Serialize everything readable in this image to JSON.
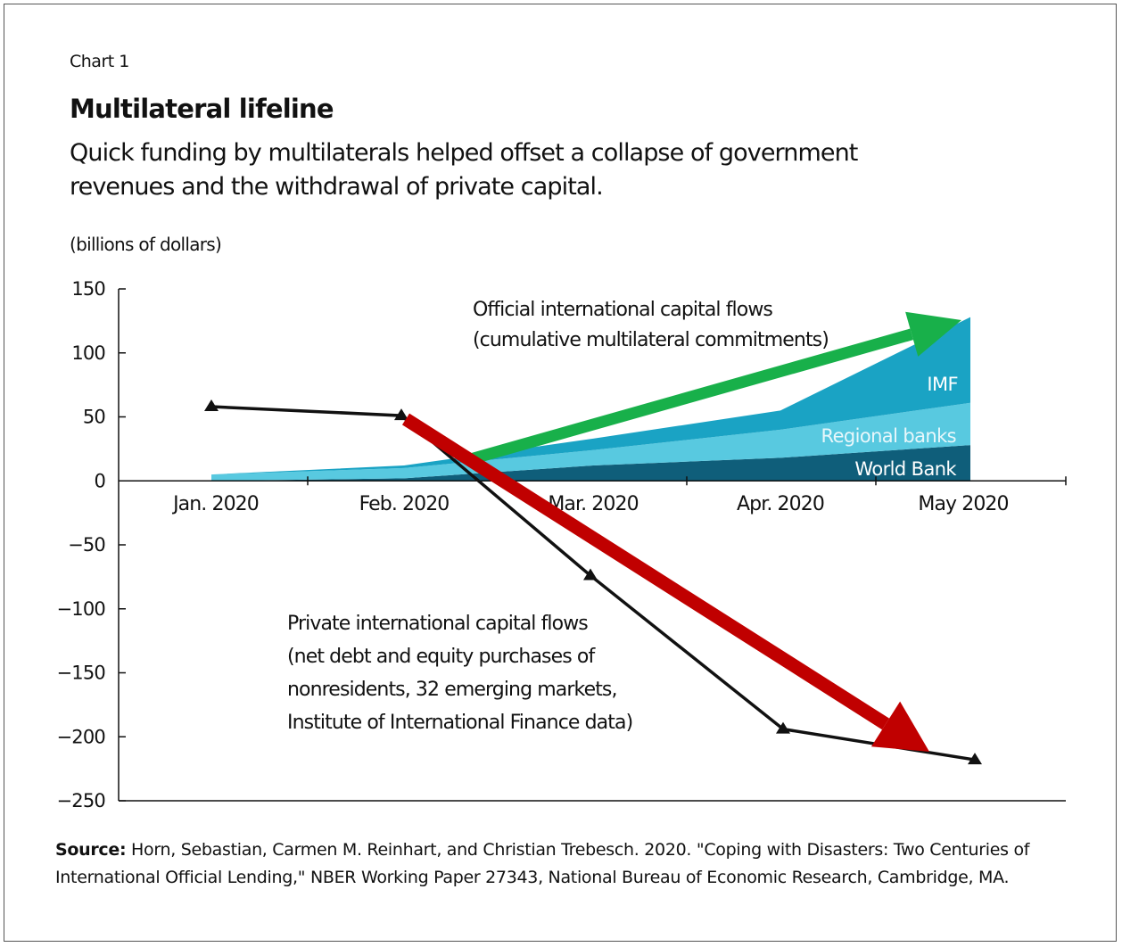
{
  "header": {
    "chart_number": "Chart 1",
    "title": "Multilateral lifeline",
    "subtitle": "Quick funding by multilaterals helped offset a collapse of government revenues and the withdrawal of private capital.",
    "unit": "(billions of dollars)"
  },
  "source": {
    "label": "Source:",
    "text": "Horn, Sebastian, Carmen M. Reinhart, and Christian Trebesch. 2020. \"Coping with Disasters: Two Centuries of International Official Lending,\" NBER Working Paper 27343, National Bureau of Economic Research, Cambridge, MA."
  },
  "chart_data": {
    "type": "area",
    "ylabel": "(billions of dollars)",
    "ylim": [
      -250,
      150
    ],
    "yticks": [
      150,
      100,
      50,
      0,
      -50,
      -100,
      -150,
      -200,
      -250
    ],
    "x": [
      "Jan. 2020",
      "Feb. 2020",
      "Mar. 2020",
      "Apr. 2020",
      "May 2020"
    ],
    "area_series": [
      {
        "name": "World Bank",
        "color": "#0f5e7a",
        "values": [
          0,
          2,
          12,
          18,
          28
        ]
      },
      {
        "name": "Regional banks",
        "color": "#58c9e0",
        "values": [
          5,
          8,
          12,
          22,
          33
        ]
      },
      {
        "name": "IMF",
        "color": "#1aa3c4",
        "values": [
          0,
          2,
          9,
          15,
          67
        ]
      }
    ],
    "line_series": [
      {
        "name": "Private international capital flows",
        "color": "#111111",
        "values": [
          58,
          51,
          -74,
          -194,
          -218
        ]
      }
    ],
    "annotations": {
      "official_label": [
        "Official international capital flows",
        "(cumulative multilateral commitments)"
      ],
      "private_label": [
        "Private international capital flows",
        "(net debt and equity purchases of",
        "nonresidents, 32 emerging markets,",
        "Institute of International Finance data)"
      ]
    },
    "overlay_arrows": [
      {
        "name": "green-arrow",
        "color": "#18b04a",
        "from": [
          "Feb. 2020",
          51
        ],
        "to": [
          "May 2020",
          127
        ]
      },
      {
        "name": "red-arrow",
        "color": "#c00000",
        "from": [
          "Feb. 2020",
          51
        ],
        "to": [
          "May 2020",
          -210
        ]
      }
    ],
    "grid": false,
    "legend": "inline labels"
  }
}
